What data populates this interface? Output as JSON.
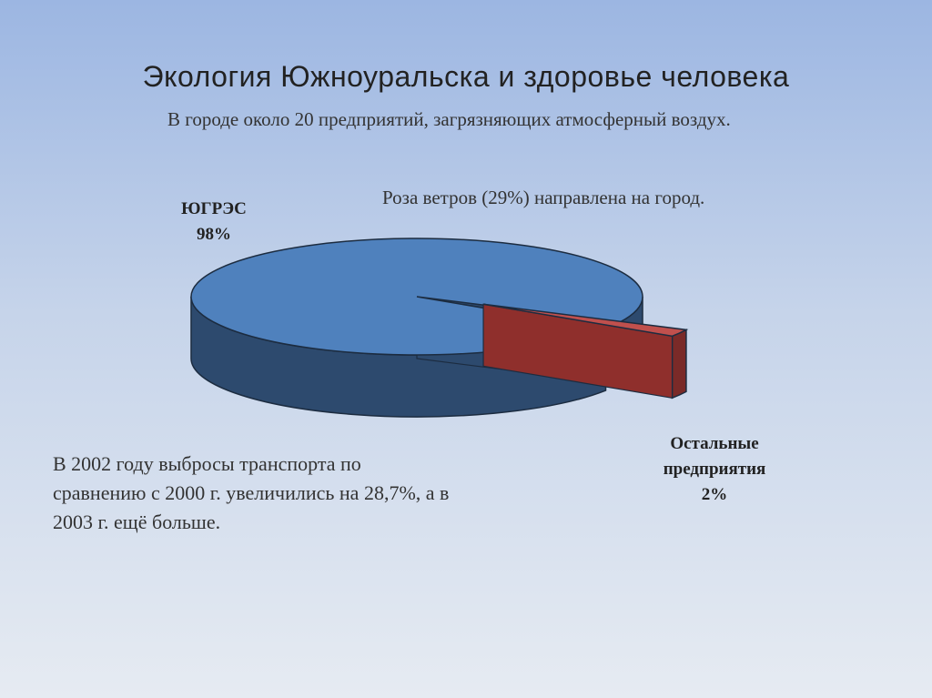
{
  "slide": {
    "title": "Экология Южноуральска и здоровье человека",
    "intro": "В городе около 20 предприятий, загрязняющих атмосферный воздух.",
    "wind": "Роза ветров (29%) направлена на город.",
    "transport": "В 2002 году выбросы транспорта по сравнению с 2000 г. увеличились на 28,7%, а в 2003 г. ещё больше."
  },
  "chart_data": {
    "type": "pie",
    "style": "3d-exploded",
    "slices": [
      {
        "label": "ЮГРЭС",
        "value": 98,
        "value_label": "98%",
        "color": "#4f81bd",
        "side_color": "#2d4a6e"
      },
      {
        "label": "Остальные предприятия",
        "value": 2,
        "value_label": "2%",
        "color": "#c0504d",
        "side_color": "#7a2a28"
      }
    ],
    "legend": "none"
  }
}
